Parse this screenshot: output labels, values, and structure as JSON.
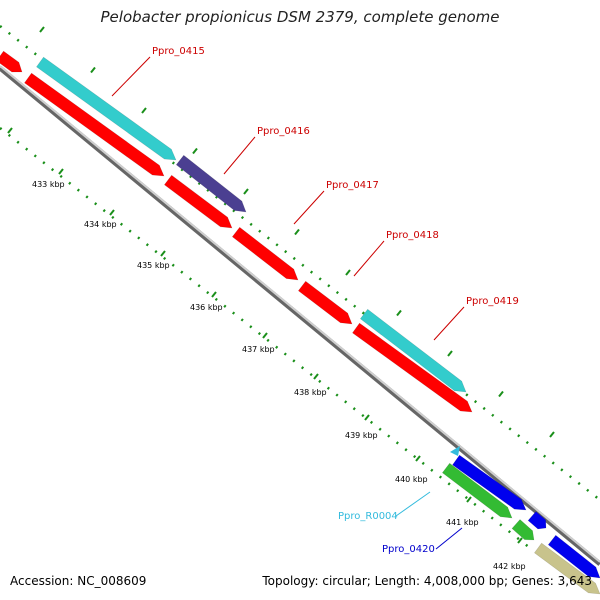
{
  "title": "Pelobacter propionicus DSM 2379, complete genome",
  "footer": {
    "accession": "Accession: NC_008609",
    "summary": "Topology: circular; Length: 4,008,000 bp; Genes: 3,643"
  },
  "colors": {
    "red_cds": "#ff0000",
    "cyan_cds": "#33cccc",
    "purple_cds": "#4b3f91",
    "blue_cds": "#0000ee",
    "green_cds": "#33bb33",
    "khaki_cds": "#c8c38c",
    "backbone": "#888888",
    "dots": "#1a8f1a",
    "red_label": "#cc0000",
    "cyan_label": "#33bbdd",
    "blue_label": "#0000cc"
  },
  "kbp_ticks": [
    "433 kbp",
    "434 kbp",
    "435 kbp",
    "436 kbp",
    "437 kbp",
    "438 kbp",
    "439 kbp",
    "440 kbp",
    "441 kbp",
    "442 kbp"
  ],
  "gene_labels": [
    {
      "text": "Ppro_0415",
      "color": "red"
    },
    {
      "text": "Ppro_0416",
      "color": "red"
    },
    {
      "text": "Ppro_0417",
      "color": "red"
    },
    {
      "text": "Ppro_0418",
      "color": "red"
    },
    {
      "text": "Ppro_0419",
      "color": "red"
    },
    {
      "text": "Ppro_R0004",
      "color": "cyan"
    },
    {
      "text": "Ppro_0420",
      "color": "blue"
    }
  ]
}
